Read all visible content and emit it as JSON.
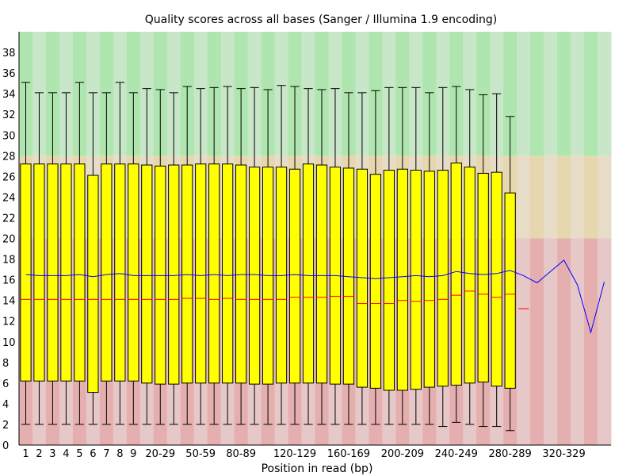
{
  "chart_data": {
    "type": "boxplot",
    "title": "Quality scores across all bases (Sanger / Illumina 1.9 encoding)",
    "xlabel": "Position in read (bp)",
    "ylabel": "",
    "ylim": [
      0,
      40
    ],
    "yticks": [
      0,
      2,
      4,
      6,
      8,
      10,
      12,
      14,
      16,
      18,
      20,
      22,
      24,
      26,
      28,
      30,
      32,
      34,
      36,
      38
    ],
    "grid": false,
    "legend": "none",
    "quality_zones": [
      {
        "name": "poor",
        "from": 0,
        "to": 20,
        "colors": [
          "#e6afaf",
          "#e6c8c8"
        ]
      },
      {
        "name": "reasonable",
        "from": 20,
        "to": 28,
        "colors": [
          "#e6d7af",
          "#e6dcc8"
        ]
      },
      {
        "name": "good",
        "from": 28,
        "to": 40,
        "colors": [
          "#afe6af",
          "#c8e6c8"
        ]
      }
    ],
    "colors": {
      "box": "#ffff00",
      "median": "#ff0000",
      "mean_line": "#0000ff",
      "whisker": "#000000"
    },
    "categories": [
      "1",
      "2",
      "3",
      "4",
      "5",
      "6",
      "7",
      "8",
      "9",
      "10-19",
      "20-29",
      "30-39",
      "40-49",
      "50-59",
      "60-69",
      "70-79",
      "80-89",
      "90-99",
      "100-109",
      "110-119",
      "120-129",
      "130-139",
      "140-149",
      "150-159",
      "160-169",
      "170-179",
      "180-189",
      "190-199",
      "200-209",
      "210-219",
      "220-229",
      "230-239",
      "240-249",
      "250-259",
      "260-269",
      "270-279",
      "280-289",
      "290-299",
      "300-309",
      "310-319",
      "320-329",
      "330-339",
      "340-349",
      "350-359"
    ],
    "tick_labels": [
      "1",
      "2",
      "3",
      "4",
      "5",
      "6",
      "7",
      "8",
      "9",
      "20-29",
      "50-59",
      "80-89",
      "120-129",
      "160-169",
      "200-209",
      "240-249",
      "280-289",
      "320-329"
    ],
    "tick_categories": [
      "1",
      "2",
      "3",
      "4",
      "5",
      "6",
      "7",
      "8",
      "9",
      "20-29",
      "50-59",
      "80-89",
      "120-129",
      "160-169",
      "200-209",
      "240-249",
      "280-289",
      "320-329"
    ],
    "series": [
      {
        "stat": "lower_whisker",
        "values": [
          2,
          2,
          2,
          2,
          2,
          2,
          2,
          2,
          2,
          2,
          2,
          2,
          2,
          2,
          2,
          2,
          2,
          2,
          2,
          2,
          2,
          2,
          2,
          2,
          2,
          2,
          2,
          2,
          2,
          2,
          2,
          1.8,
          2.2,
          2,
          1.8,
          1.8,
          1.4,
          null,
          null,
          null,
          null,
          null,
          null,
          null
        ]
      },
      {
        "stat": "lower_quartile",
        "values": [
          6.2,
          6.2,
          6.2,
          6.2,
          6.2,
          5.1,
          6.2,
          6.2,
          6.2,
          6,
          5.9,
          5.9,
          6,
          6,
          6,
          6,
          6,
          5.9,
          5.9,
          6,
          6,
          6,
          6,
          5.9,
          5.9,
          5.6,
          5.5,
          5.3,
          5.3,
          5.4,
          5.6,
          5.7,
          5.8,
          6,
          6.1,
          5.7,
          5.5,
          null,
          null,
          null,
          null,
          null,
          null,
          null
        ]
      },
      {
        "stat": "median",
        "values": [
          14.1,
          14.1,
          14.1,
          14.1,
          14.1,
          14.1,
          14.1,
          14.1,
          14.1,
          14.1,
          14.1,
          14.1,
          14.2,
          14.2,
          14.1,
          14.2,
          14.1,
          14.1,
          14.1,
          14.1,
          14.3,
          14.3,
          14.3,
          14.4,
          14.4,
          13.7,
          13.7,
          13.7,
          14,
          13.9,
          14,
          14.1,
          14.5,
          14.9,
          14.6,
          14.3,
          14.6,
          13.2,
          null,
          null,
          null,
          null,
          null,
          null
        ]
      },
      {
        "stat": "upper_quartile",
        "values": [
          27.2,
          27.2,
          27.2,
          27.2,
          27.2,
          26.1,
          27.2,
          27.2,
          27.2,
          27.1,
          27,
          27.1,
          27.1,
          27.2,
          27.2,
          27.2,
          27.1,
          26.9,
          26.9,
          26.9,
          26.7,
          27.2,
          27.1,
          26.9,
          26.8,
          26.7,
          26.2,
          26.6,
          26.7,
          26.6,
          26.5,
          26.6,
          27.3,
          26.9,
          26.3,
          26.4,
          24.4,
          null,
          null,
          null,
          null,
          null,
          null,
          null
        ]
      },
      {
        "stat": "upper_whisker",
        "values": [
          35.1,
          34.1,
          34.1,
          34.1,
          35.1,
          34.1,
          34.1,
          35.1,
          34.1,
          34.5,
          34.4,
          34.1,
          34.7,
          34.5,
          34.6,
          34.7,
          34.5,
          34.6,
          34.4,
          34.8,
          34.7,
          34.5,
          34.4,
          34.5,
          34.1,
          34.1,
          34.3,
          34.6,
          34.6,
          34.6,
          34.1,
          34.6,
          34.7,
          34.4,
          33.9,
          34,
          31.8,
          null,
          null,
          null,
          null,
          null,
          null,
          null
        ]
      },
      {
        "stat": "mean",
        "values": [
          16.5,
          16.4,
          16.4,
          16.4,
          16.5,
          16.3,
          16.5,
          16.6,
          16.4,
          16.4,
          16.4,
          16.4,
          16.5,
          16.4,
          16.5,
          16.4,
          16.5,
          16.5,
          16.4,
          16.4,
          16.5,
          16.4,
          16.4,
          16.4,
          16.3,
          16.2,
          16.1,
          16.2,
          16.3,
          16.4,
          16.3,
          16.4,
          16.8,
          16.6,
          16.5,
          16.6,
          16.9,
          16.4,
          15.7,
          16.8,
          17.9,
          15.5,
          10.9,
          15.8
        ]
      }
    ]
  }
}
